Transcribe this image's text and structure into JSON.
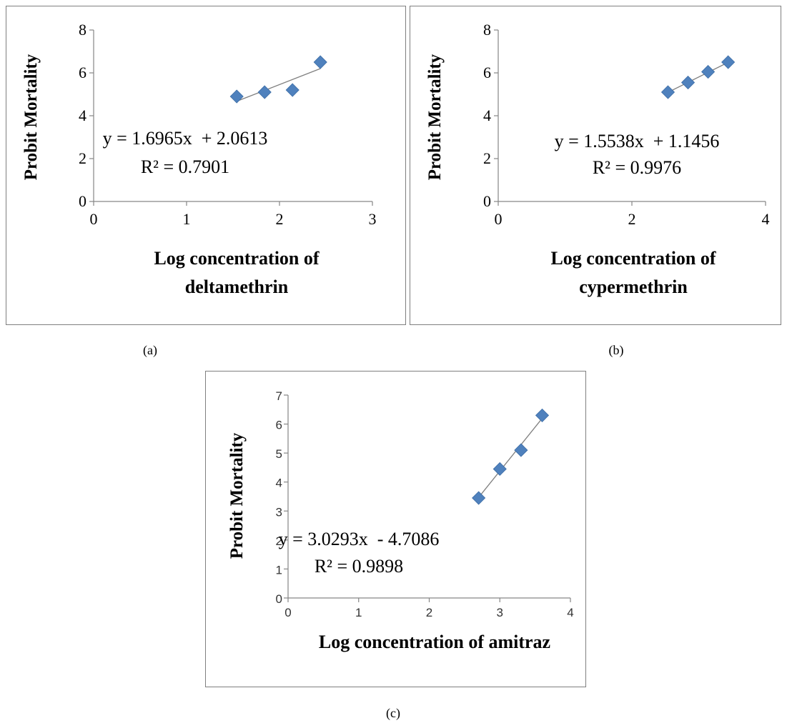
{
  "colors": {
    "marker": "#4f81bd",
    "trendline": "#7f7f7f",
    "axis": "#868686",
    "frame": "#7f7f7f"
  },
  "chart_data": [
    {
      "type": "scatter",
      "panel_label": "(a)",
      "xlabel_lines": [
        "Log concentration of",
        "deltamethrin"
      ],
      "ylabel": "Probit Mortality",
      "xlim": [
        0,
        3
      ],
      "ylim": [
        0,
        8
      ],
      "xticks": [
        0,
        1,
        2,
        3
      ],
      "yticks": [
        0,
        2,
        4,
        6,
        8
      ],
      "grid": false,
      "x": [
        1.54,
        1.84,
        2.14,
        2.44
      ],
      "y": [
        4.9,
        5.1,
        5.2,
        6.5
      ],
      "trendline": {
        "type": "linear",
        "slope": 1.6965,
        "intercept": 2.0613
      },
      "equation": "y = 1.6965x  + 2.0613",
      "r_squared": "R² = 0.7901"
    },
    {
      "type": "scatter",
      "panel_label": "(b)",
      "xlabel_lines": [
        "Log concentration of",
        "cypermethrin"
      ],
      "ylabel": "Probit Mortality",
      "xlim": [
        0,
        4
      ],
      "ylim": [
        0,
        8
      ],
      "xticks": [
        0,
        2,
        4
      ],
      "yticks": [
        0,
        2,
        4,
        6,
        8
      ],
      "grid": false,
      "x": [
        2.54,
        2.84,
        3.14,
        3.44
      ],
      "y": [
        5.1,
        5.55,
        6.05,
        6.5
      ],
      "trendline": {
        "type": "linear",
        "slope": 1.5538,
        "intercept": 1.1456
      },
      "equation": "y = 1.5538x  + 1.1456",
      "r_squared": "R² = 0.9976"
    },
    {
      "type": "scatter",
      "panel_label": "(c)",
      "xlabel_lines": [
        "Log concentration of amitraz"
      ],
      "ylabel": "Probit Mortality",
      "xlim": [
        0,
        4
      ],
      "ylim": [
        0,
        7
      ],
      "xticks": [
        0,
        1,
        2,
        3,
        4
      ],
      "yticks": [
        0,
        1,
        2,
        3,
        4,
        5,
        6,
        7
      ],
      "grid": false,
      "x": [
        2.7,
        3.0,
        3.3,
        3.6
      ],
      "y": [
        3.45,
        4.45,
        5.1,
        6.3
      ],
      "trendline": {
        "type": "linear",
        "slope": 3.0293,
        "intercept": -4.7086
      },
      "equation": "y = 3.0293x  - 4.7086",
      "r_squared": "R² = 0.9898"
    }
  ]
}
